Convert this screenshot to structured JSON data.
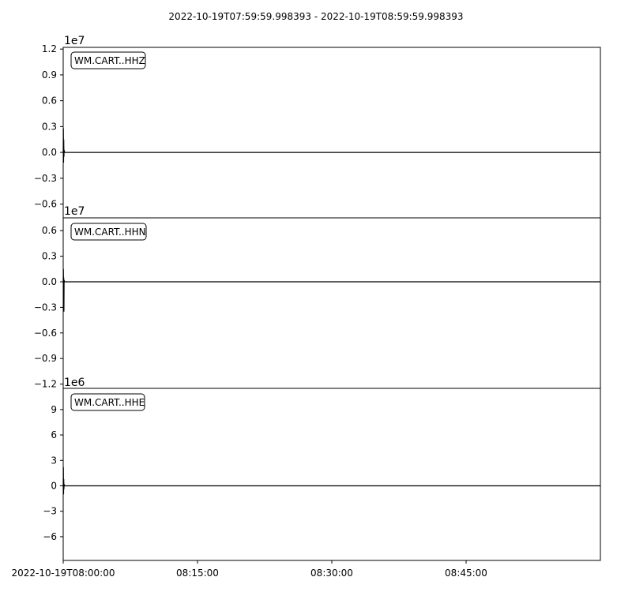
{
  "chart_data": {
    "type": "line",
    "title": "2022-10-19T07:59:59.998393  -  2022-10-19T08:59:59.998393",
    "x_tick_labels": [
      "2022-10-19T08:00:00",
      "08:15:00",
      "08:30:00",
      "08:45:00"
    ],
    "x_tick_minutes": [
      0,
      15,
      30,
      45
    ],
    "x_range_minutes": [
      0,
      60
    ],
    "panels": [
      {
        "trace_label": "WM.CART..HHZ",
        "offset_label": "1e7",
        "ylim": [
          -0.76,
          1.22
        ],
        "y_ticks": [
          1.2,
          0.9,
          0.6,
          0.3,
          0.0,
          -0.3,
          -0.6
        ],
        "y_tick_labels": [
          "1.2",
          "0.9",
          "0.6",
          "0.3",
          "0.0",
          "−0.3",
          "−0.6"
        ],
        "series": [
          {
            "x": [
              0,
              0.02,
              0.04,
              0.06,
              0.08,
              0.1,
              0.15,
              60
            ],
            "y": [
              0,
              0.28,
              -0.12,
              0.15,
              -0.05,
              0.03,
              0,
              0
            ]
          }
        ]
      },
      {
        "trace_label": "WM.CART..HHN",
        "offset_label": "1e7",
        "ylim": [
          -1.25,
          0.75
        ],
        "y_ticks": [
          0.6,
          0.3,
          0.0,
          -0.3,
          -0.6,
          -0.9,
          -1.2
        ],
        "y_tick_labels": [
          "0.6",
          "0.3",
          "0.0",
          "−0.3",
          "−0.6",
          "−0.9",
          "−1.2"
        ],
        "series": [
          {
            "x": [
              0,
              0.02,
              0.04,
              0.06,
              0.08,
              0.1,
              0.15,
              60
            ],
            "y": [
              0,
              0.15,
              -0.05,
              0.05,
              -0.35,
              0.02,
              0,
              0
            ]
          }
        ]
      },
      {
        "trace_label": "WM.CART..HHE",
        "offset_label": "1e6",
        "ylim": [
          -8.8,
          11.5
        ],
        "y_ticks": [
          9,
          6,
          3,
          0,
          -3,
          -6
        ],
        "y_tick_labels": [
          "9",
          "6",
          "3",
          "0",
          "−3",
          "−6"
        ],
        "series": [
          {
            "x": [
              0,
              0.02,
              0.04,
              0.06,
              0.08,
              0.1,
              0.15,
              60
            ],
            "y": [
              0,
              2.2,
              -1.0,
              0.8,
              -0.4,
              0.2,
              0,
              0
            ]
          }
        ]
      }
    ]
  }
}
